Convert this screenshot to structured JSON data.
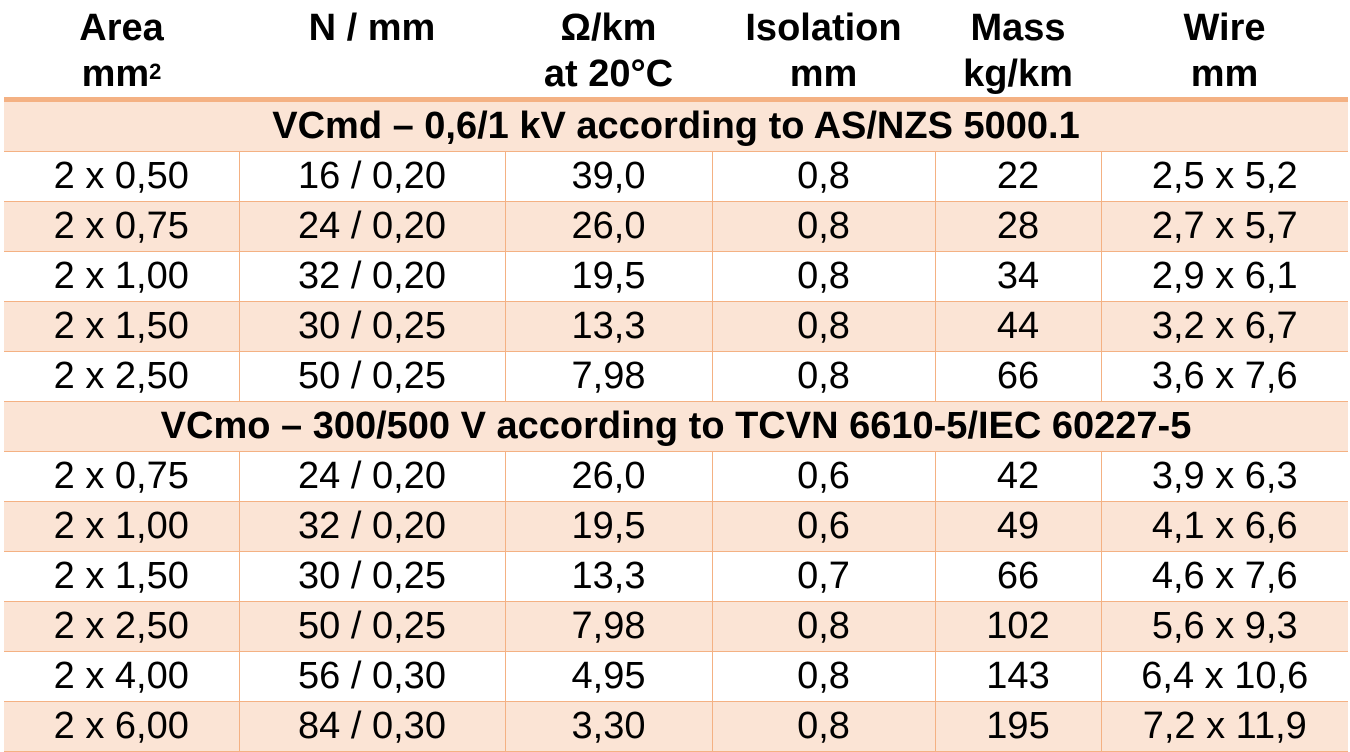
{
  "header": {
    "area": {
      "line1": "Area",
      "line2": "mm",
      "sup": "2"
    },
    "conductor": {
      "line1": "N / mm",
      "line2": ""
    },
    "resistance": {
      "line1": "Ω/km",
      "line2": "at 20°C"
    },
    "isolation": {
      "line1": "Isolation",
      "line2": "mm"
    },
    "mass": {
      "line1": "Mass",
      "line2": "kg/km"
    },
    "wire": {
      "line1": "Wire",
      "line2": "mm"
    }
  },
  "sections": [
    {
      "title": "VCmd – 0,6/1 kV according to AS/NZS 5000.1",
      "rows": [
        [
          "2 x 0,50",
          "16 / 0,20",
          "39,0",
          "0,8",
          "22",
          "2,5 x 5,2"
        ],
        [
          "2 x 0,75",
          "24 / 0,20",
          "26,0",
          "0,8",
          "28",
          "2,7 x 5,7"
        ],
        [
          "2 x 1,00",
          "32 / 0,20",
          "19,5",
          "0,8",
          "34",
          "2,9 x 6,1"
        ],
        [
          "2 x 1,50",
          "30 / 0,25",
          "13,3",
          "0,8",
          "44",
          "3,2 x 6,7"
        ],
        [
          "2 x 2,50",
          "50 / 0,25",
          "7,98",
          "0,8",
          "66",
          "3,6 x 7,6"
        ]
      ]
    },
    {
      "title": "VCmo – 300/500 V according to TCVN 6610-5/IEC 60227-5",
      "rows": [
        [
          "2 x 0,75",
          "24 / 0,20",
          "26,0",
          "0,6",
          "42",
          "3,9 x 6,3"
        ],
        [
          "2 x 1,00",
          "32 / 0,20",
          "19,5",
          "0,6",
          "49",
          "4,1 x 6,6"
        ],
        [
          "2 x 1,50",
          "30 / 0,25",
          "13,3",
          "0,7",
          "66",
          "4,6 x 7,6"
        ],
        [
          "2 x 2,50",
          "50 / 0,25",
          "7,98",
          "0,8",
          "102",
          "5,6 x 9,3"
        ],
        [
          "2 x 4,00",
          "56 / 0,30",
          "4,95",
          "0,8",
          "143",
          "6,4 x 10,6"
        ],
        [
          "2 x 6,00",
          "84 / 0,30",
          "3,30",
          "0,8",
          "195",
          "7,2 x 11,9"
        ]
      ]
    }
  ],
  "colors": {
    "accent": "#f4b183",
    "band": "#fbe4d5",
    "background": "#ffffff"
  }
}
